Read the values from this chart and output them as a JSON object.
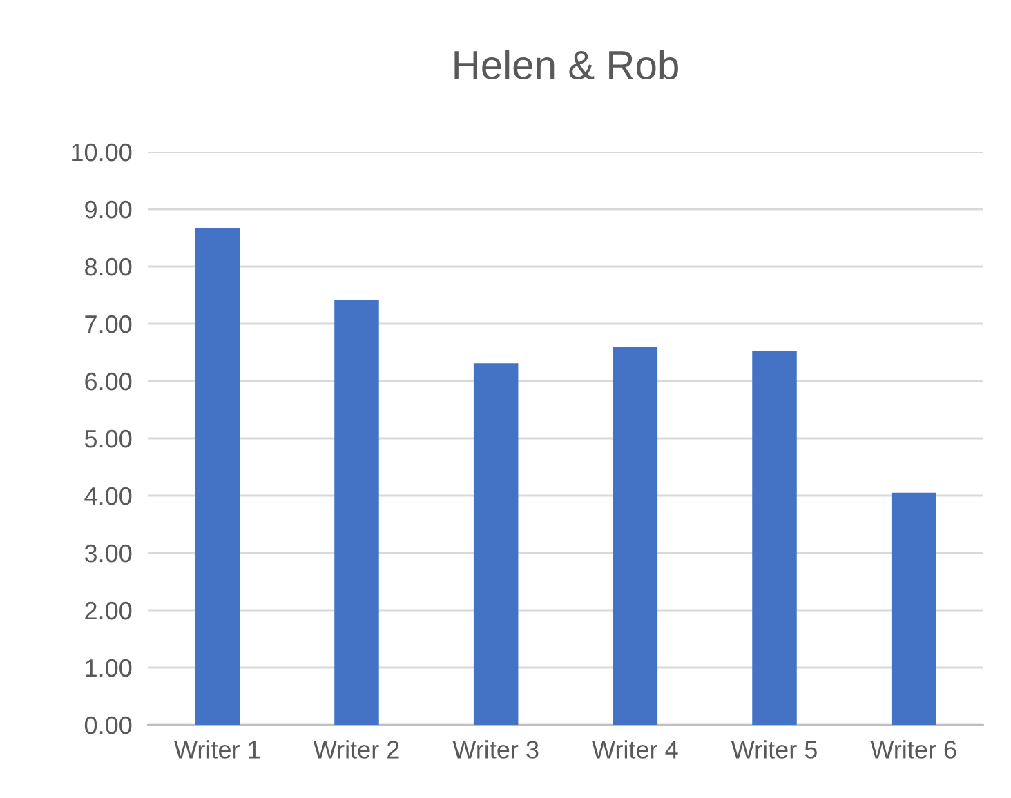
{
  "chart_data": {
    "type": "bar",
    "title": "Helen & Rob",
    "categories": [
      "Writer 1",
      "Writer 2",
      "Writer 3",
      "Writer 4",
      "Writer 5",
      "Writer 6"
    ],
    "values": [
      8.67,
      7.42,
      6.31,
      6.6,
      6.53,
      4.05
    ],
    "color": "#4472c4",
    "ylim": [
      0,
      10
    ],
    "yticks": [
      {
        "value": 0,
        "label": "0.00"
      },
      {
        "value": 1,
        "label": "1.00"
      },
      {
        "value": 2,
        "label": "2.00"
      },
      {
        "value": 3,
        "label": "3.00"
      },
      {
        "value": 4,
        "label": "4.00"
      },
      {
        "value": 5,
        "label": "5.00"
      },
      {
        "value": 6,
        "label": "6.00"
      },
      {
        "value": 7,
        "label": "7.00"
      },
      {
        "value": 8,
        "label": "8.00"
      },
      {
        "value": 9,
        "label": "9.00"
      },
      {
        "value": 10,
        "label": "10.00"
      }
    ],
    "grid": "y",
    "legend": false
  }
}
